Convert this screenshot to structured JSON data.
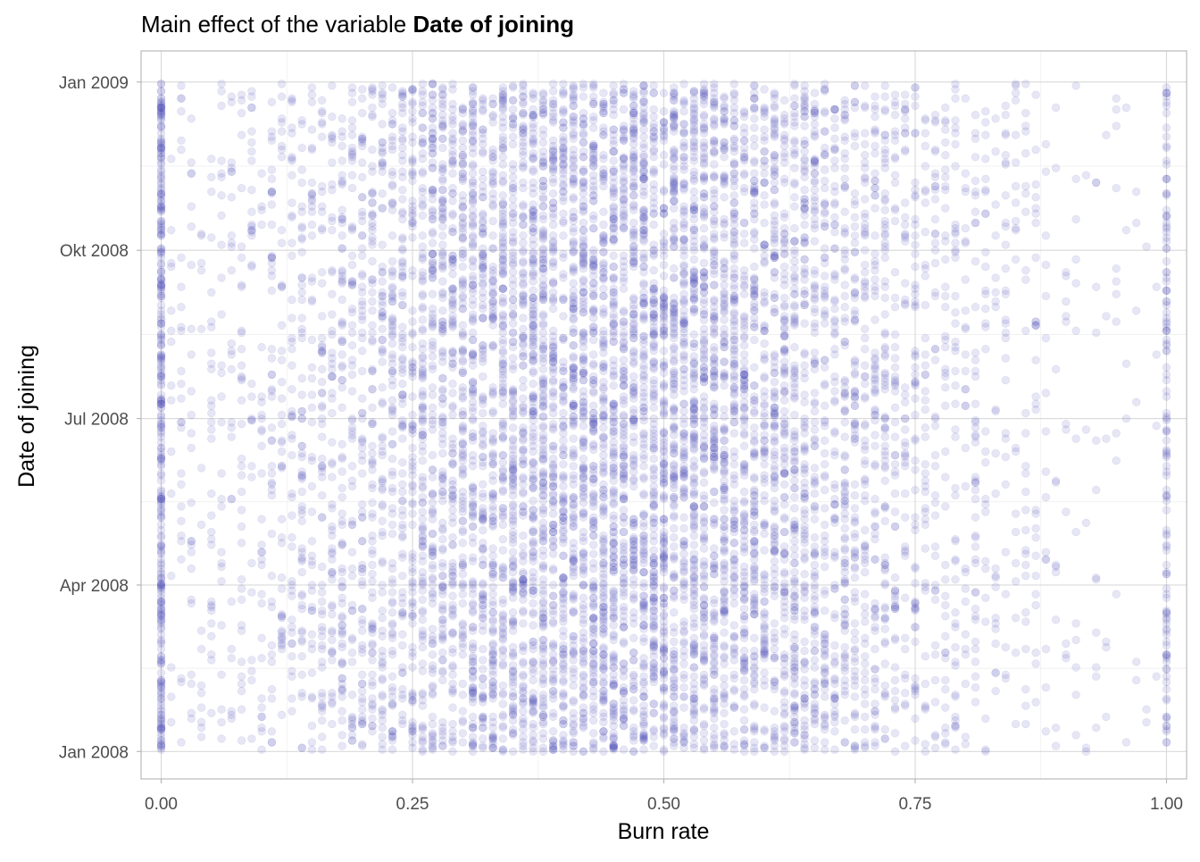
{
  "chart_data": {
    "type": "scatter",
    "title_prefix": "Main effect of the variable ",
    "title_bold": "Date of joining",
    "xlabel": "Burn rate",
    "ylabel": "Date of joining",
    "xlim": [
      -0.02,
      1.02
    ],
    "ylim": [
      "2007-12-17",
      "2009-01-18"
    ],
    "x_ticks": [
      {
        "value": 0.0,
        "label": "0.00"
      },
      {
        "value": 0.25,
        "label": "0.25"
      },
      {
        "value": 0.5,
        "label": "0.50"
      },
      {
        "value": 0.75,
        "label": "0.75"
      },
      {
        "value": 1.0,
        "label": "1.00"
      }
    ],
    "y_ticks": [
      {
        "value": "2008-01-01",
        "label": "Jan 2008"
      },
      {
        "value": "2008-04-01",
        "label": "Apr 2008"
      },
      {
        "value": "2008-07-01",
        "label": "Jul 2008"
      },
      {
        "value": "2008-10-01",
        "label": "Okt 2008"
      },
      {
        "value": "2009-01-01",
        "label": "Jan 2009"
      }
    ],
    "x_step": 0.01,
    "y_range": [
      "2008-01-01",
      "2008-12-31"
    ],
    "n_points": 9000,
    "point_color": "#3b3bb3",
    "point_opacity": 0.13,
    "distribution": {
      "x_shape": "roughly normal, mean about 0.45, sd about 0.20, clipped to [0, 1] with extra mass at exactly 0 and 1",
      "y_shape": "roughly uniform over the year"
    },
    "grid": true,
    "legend": "none"
  }
}
